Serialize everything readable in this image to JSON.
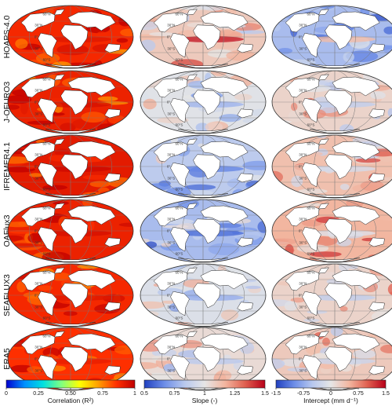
{
  "rows": [
    {
      "name": "HOAPS-4.0"
    },
    {
      "name": "J-OFURO3"
    },
    {
      "name": "IFREMER4.1"
    },
    {
      "name": "OAFlux3"
    },
    {
      "name": "SEAFLUX3"
    },
    {
      "name": "ERA5"
    }
  ],
  "lat_labels": [
    "60°N",
    "30°N",
    "0°",
    "30°S",
    "60°S"
  ],
  "columns": [
    {
      "key": "correlation",
      "title": "Correlation (R²)",
      "ticks": [
        "0",
        "0.25",
        "0.50",
        "0.75",
        "1"
      ],
      "range": [
        0,
        1
      ],
      "colormap": [
        "#0000d0",
        "#0090ff",
        "#00e0e0",
        "#80ff80",
        "#ffff00",
        "#ffa000",
        "#ff3000",
        "#c00000"
      ]
    },
    {
      "key": "slope",
      "title": "Slope (-)",
      "ticks": [
        "0.5",
        "0.75",
        "1",
        "1.25",
        "1.5"
      ],
      "range": [
        0.5,
        1.5
      ],
      "colormap": [
        "#2040c0",
        "#6d8ee8",
        "#b8c8ee",
        "#e6e6e6",
        "#f2b6a0",
        "#e06050",
        "#b80018"
      ]
    },
    {
      "key": "intercept",
      "title": "Intercept (mm d⁻¹)",
      "ticks": [
        "-1.5",
        "-0.75",
        "0",
        "0.75",
        "1.5"
      ],
      "range": [
        -1.5,
        1.5
      ],
      "colormap": [
        "#2040c0",
        "#6d8ee8",
        "#b8c8ee",
        "#e6e6e6",
        "#f2b6a0",
        "#e06050",
        "#b80018"
      ]
    }
  ],
  "map_fields": {
    "correlation": [
      0.88,
      0.9,
      0.92,
      0.9,
      0.88,
      0.86
    ],
    "slope": [
      1.1,
      0.98,
      0.85,
      0.8,
      0.96,
      1.04
    ],
    "intercept": [
      -0.6,
      0.2,
      0.4,
      0.5,
      0.2,
      0.3
    ]
  },
  "colors": {
    "land": "#ffffff",
    "coast": "#222222",
    "grid": "#7a7a7a",
    "outline": "#333333"
  }
}
